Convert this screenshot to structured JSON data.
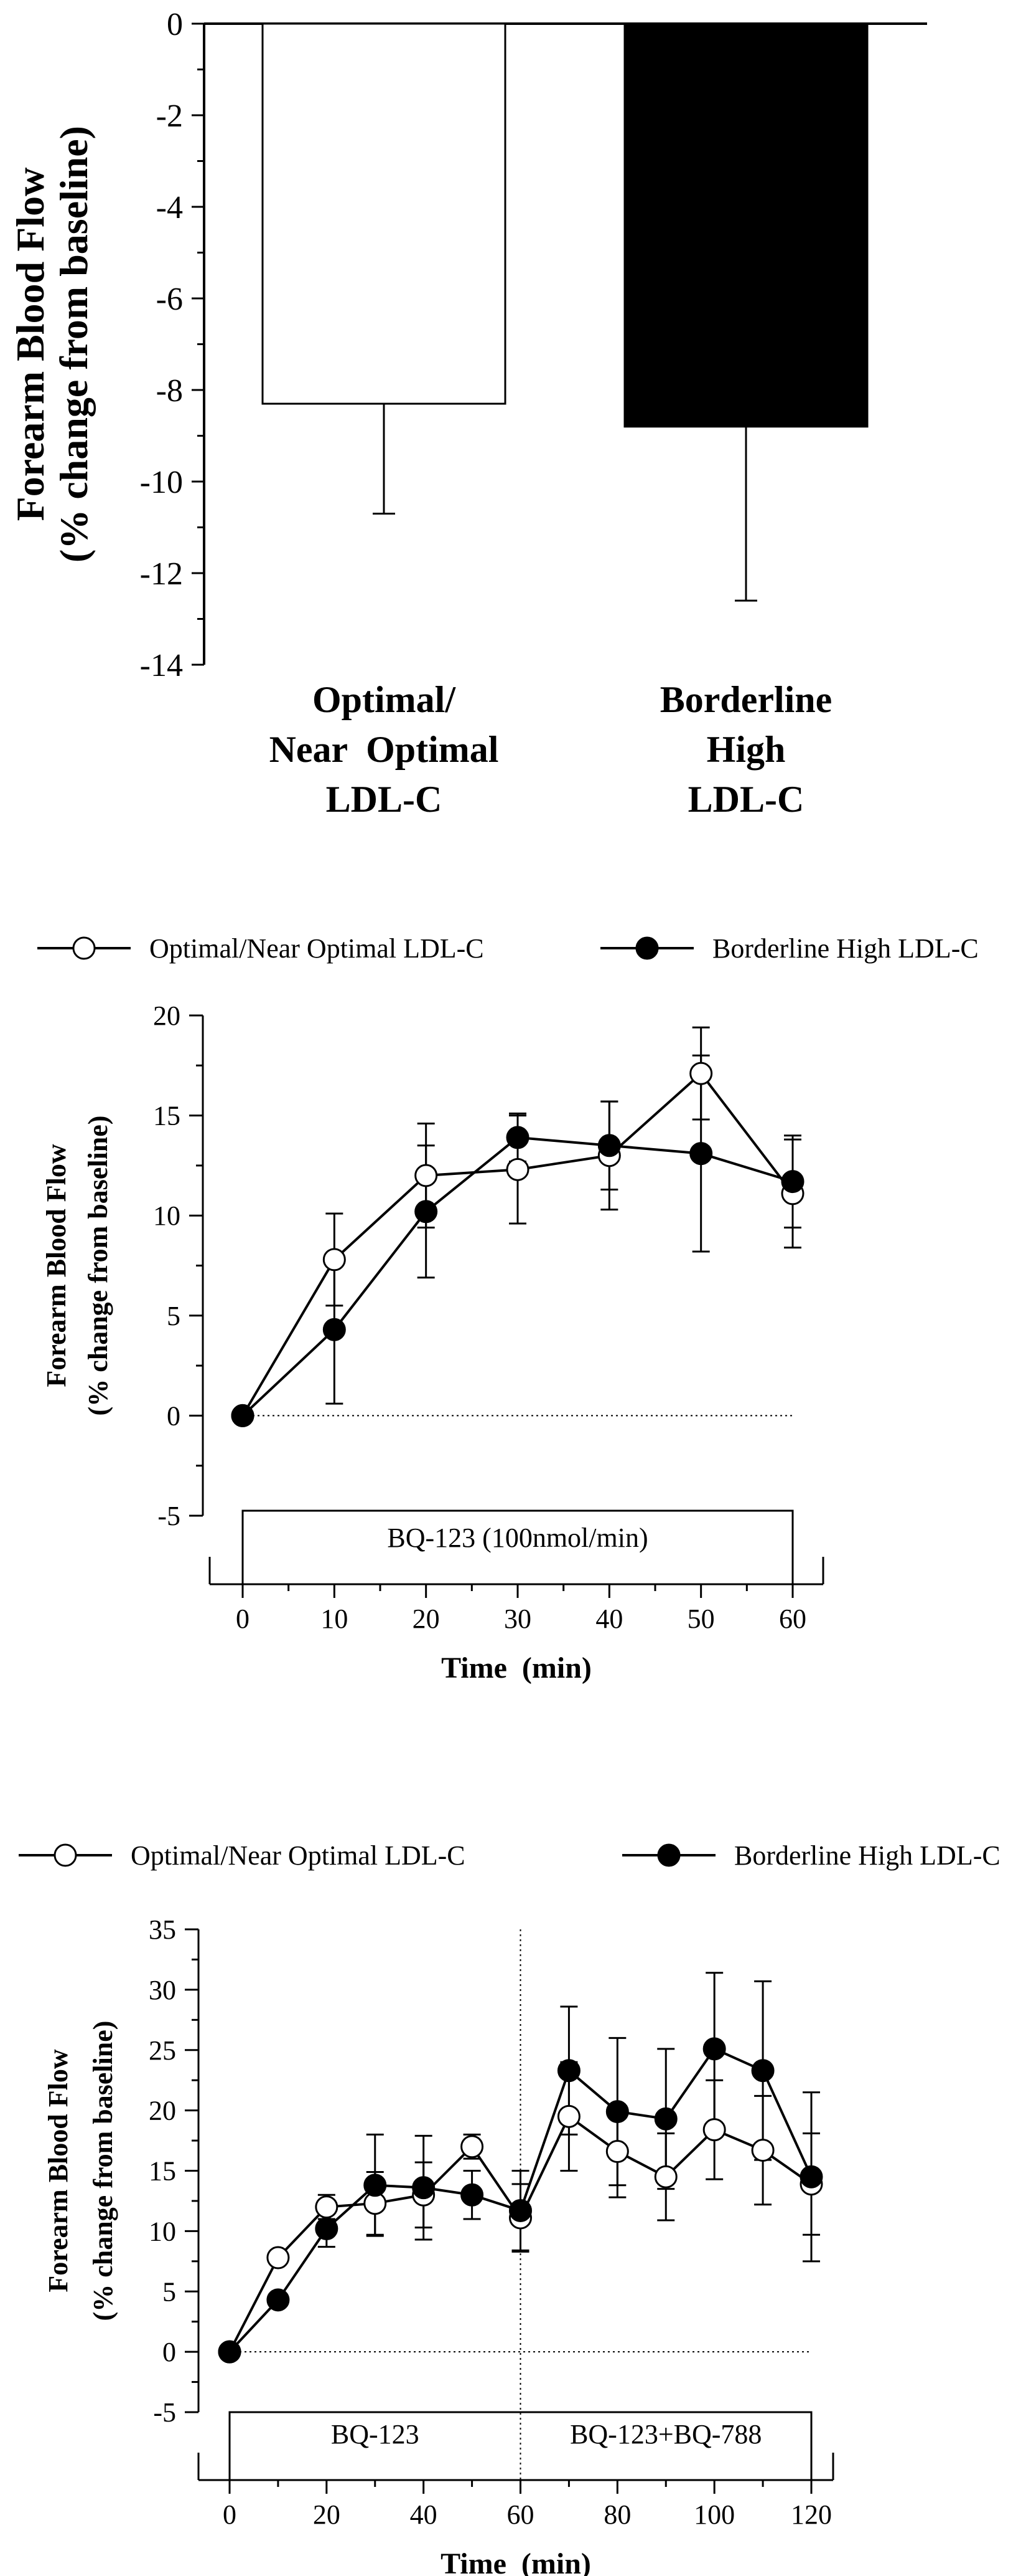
{
  "chart_data": [
    {
      "type": "bar",
      "ylabel": [
        "Forearm Blood Flow",
        "(% change from baseline)"
      ],
      "ylim": [
        -14,
        0
      ],
      "yticks": [
        0,
        -2,
        -4,
        -6,
        -8,
        -10,
        -12,
        -14
      ],
      "categories": [
        {
          "label": [
            "Optimal/",
            "Near  Optimal",
            "LDL-C"
          ],
          "fill": "#ffffff"
        },
        {
          "label": [
            "Borderline",
            "High",
            "LDL-C"
          ],
          "fill": "#000000"
        }
      ],
      "values": [
        -8.3,
        -8.8
      ],
      "errors": [
        2.4,
        3.8
      ]
    },
    {
      "type": "line",
      "xlabel": "Time  (min)",
      "ylabel": [
        "Forearm Blood Flow",
        "(% change from baseline)"
      ],
      "xlim": [
        0,
        60
      ],
      "ylim": [
        -5,
        20
      ],
      "xticks": [
        0,
        10,
        20,
        30,
        40,
        50,
        60
      ],
      "yticks": [
        -5,
        0,
        5,
        10,
        15,
        20
      ],
      "infusion_label": "BQ-123 (100nmol/min)",
      "series": [
        {
          "name": "Optimal/Near Optimal LDL-C",
          "marker": "open",
          "x": [
            0,
            10,
            20,
            30,
            40,
            50,
            60
          ],
          "y": [
            0,
            7.8,
            12.0,
            12.3,
            13.0,
            17.1,
            11.1
          ],
          "err": [
            0,
            2.3,
            2.6,
            2.7,
            2.7,
            2.3,
            2.7
          ]
        },
        {
          "name": "Borderline High LDL-C",
          "marker": "filled",
          "x": [
            0,
            10,
            20,
            30,
            40,
            50,
            60
          ],
          "y": [
            0,
            4.3,
            10.2,
            13.9,
            13.5,
            13.1,
            11.7
          ],
          "err": [
            0,
            3.7,
            3.3,
            1.2,
            2.2,
            4.9,
            2.3
          ]
        }
      ]
    },
    {
      "type": "line",
      "xlabel": "Time  (min)",
      "ylabel": [
        "Forearm Blood Flow",
        "(% change from baseline)"
      ],
      "xlim": [
        0,
        120
      ],
      "ylim": [
        -5,
        35
      ],
      "xticks": [
        0,
        20,
        40,
        60,
        80,
        100,
        120
      ],
      "yticks": [
        -5,
        0,
        5,
        10,
        15,
        20,
        25,
        30,
        35
      ],
      "divider_x": 60,
      "infusion_labels": [
        "BQ-123",
        "BQ-123+BQ-788"
      ],
      "series": [
        {
          "name": "Optimal/Near Optimal LDL-C",
          "marker": "open",
          "x": [
            0,
            10,
            20,
            30,
            40,
            50,
            60,
            70,
            80,
            90,
            100,
            110,
            120
          ],
          "y": [
            0,
            7.8,
            12.0,
            12.3,
            13.0,
            17.0,
            11.1,
            19.5,
            16.6,
            14.5,
            18.4,
            16.7,
            13.9
          ],
          "err": [
            0,
            0,
            1.0,
            2.6,
            2.7,
            1.0,
            2.8,
            4.5,
            3.8,
            3.6,
            4.1,
            4.5,
            4.2
          ]
        },
        {
          "name": "Borderline High LDL-C",
          "marker": "filled",
          "x": [
            0,
            10,
            20,
            30,
            40,
            50,
            60,
            70,
            80,
            90,
            100,
            110,
            120
          ],
          "y": [
            0,
            4.3,
            10.2,
            13.8,
            13.6,
            13.0,
            11.7,
            23.3,
            19.9,
            19.3,
            25.1,
            23.3,
            14.5
          ],
          "err": [
            0,
            0,
            1.5,
            4.2,
            4.3,
            2.0,
            3.3,
            5.3,
            6.1,
            5.8,
            6.3,
            7.4,
            7.0
          ]
        }
      ]
    }
  ]
}
